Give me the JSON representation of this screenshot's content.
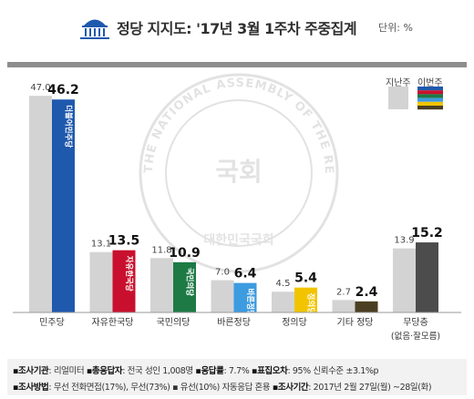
{
  "header": {
    "title": "정당 지지도: '17년 3월 1주차 주중집계",
    "unit": "단위: %"
  },
  "legend": {
    "previous_label": "지난주",
    "current_label": "이번주"
  },
  "chart_data": {
    "type": "bar",
    "title": "정당 지지도: '17년 3월 1주차 주중집계",
    "ylabel": "단위: %",
    "ylim": [
      0,
      50
    ],
    "grid": false,
    "legend_position": "top-right",
    "categories": [
      "민주당",
      "자유한국당",
      "국민의당",
      "바른정당",
      "정의당",
      "기타 정당",
      "무당층"
    ],
    "category_notes": [
      "",
      "",
      "",
      "",
      "",
      "",
      "(없음·잘모름)"
    ],
    "series": [
      {
        "name": "지난주",
        "values": [
          47.0,
          13.1,
          11.8,
          7.0,
          4.5,
          2.7,
          13.9
        ]
      },
      {
        "name": "이번주",
        "values": [
          46.2,
          13.5,
          10.9,
          6.4,
          5.4,
          2.4,
          15.2
        ]
      }
    ],
    "party_marks": [
      "더불어민주당",
      "자유한국당",
      "국민의당",
      "바른정당",
      "정의당",
      "",
      ""
    ],
    "previous_colors": [
      "#d3d3d3",
      "#d3d3d3",
      "#d3d3d3",
      "#d3d3d3",
      "#d3d3d3",
      "#d3d3d3",
      "#d3d3d3"
    ],
    "current_colors": [
      "#1f59ae",
      "#c8102e",
      "#1d7a45",
      "#3d9be0",
      "#f2c400",
      "#4a3f22",
      "#4c4c4c"
    ]
  },
  "watermark": {
    "ring_text": "THE NATIONAL ASSEMBLY OF THE REPUBLIC OF KOREA",
    "center_text": "국회",
    "bottom_text": "대한민국국회"
  },
  "notes": {
    "line1": [
      {
        "label": "▪조사기관",
        "text": ": 리얼미터 "
      },
      {
        "label": "▪총응답자",
        "text": ": 전국 성인 1,008명 "
      },
      {
        "label": "▪응답률",
        "text": ": 7.7% "
      },
      {
        "label": "▪표집오차",
        "text": ": 95% 신뢰수준 ±3.1%p"
      }
    ],
    "line2": [
      {
        "label": "▪조사방법",
        "text": ": 무선 전화면접(17%), 무선(73%) ▪ 유선(10%) 자동응답 혼용 "
      },
      {
        "label": "▪조사기간",
        "text": ": 2017년 2월 27일(월) ~28일(화)"
      }
    ]
  }
}
